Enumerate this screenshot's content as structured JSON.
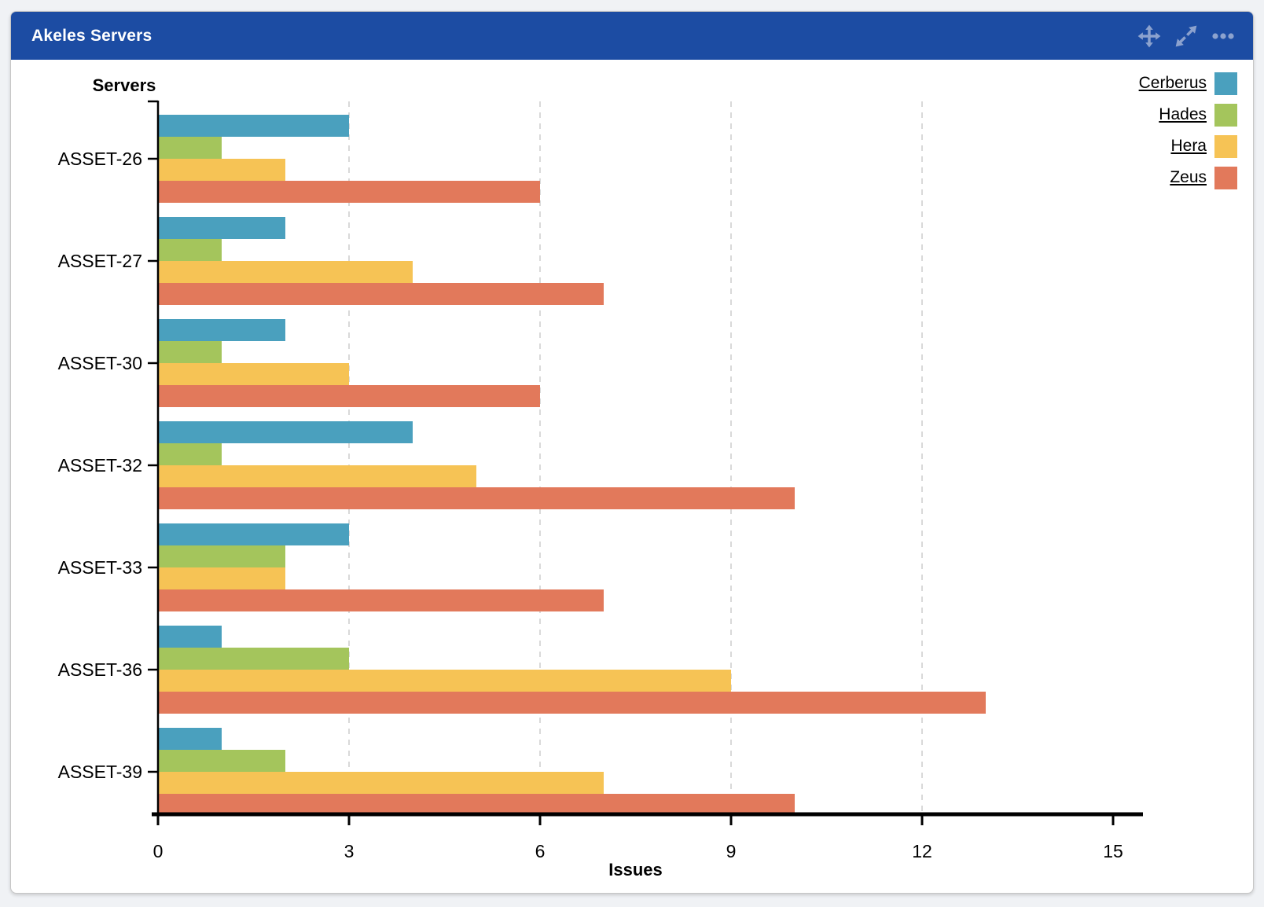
{
  "header": {
    "title": "Akeles Servers",
    "icons": [
      {
        "name": "move-icon"
      },
      {
        "name": "expand-icon"
      },
      {
        "name": "more-icon"
      }
    ],
    "bg_color": "#1C4CA3",
    "icon_color": "#8CA2CE"
  },
  "colors": {
    "page_bg": "#F0F2F5",
    "panel_bg": "#FFFFFF",
    "panel_border": "#C6C6C6"
  },
  "chart_data": {
    "type": "bar",
    "orientation": "horizontal",
    "y_axis_title": "Servers",
    "x_axis_title": "Issues",
    "categories": [
      "ASSET-26",
      "ASSET-27",
      "ASSET-30",
      "ASSET-32",
      "ASSET-33",
      "ASSET-36",
      "ASSET-39"
    ],
    "series": [
      {
        "name": "Cerberus",
        "color": "#4AA0BE",
        "values": [
          3,
          2,
          2,
          4,
          3,
          1,
          1
        ]
      },
      {
        "name": "Hades",
        "color": "#A4C55C",
        "values": [
          1,
          1,
          1,
          1,
          2,
          3,
          2
        ]
      },
      {
        "name": "Hera",
        "color": "#F6C355",
        "values": [
          2,
          4,
          3,
          5,
          2,
          9,
          7
        ]
      },
      {
        "name": "Zeus",
        "color": "#E2795B",
        "values": [
          6,
          7,
          6,
          10,
          7,
          13,
          10
        ]
      }
    ],
    "x_ticks": [
      0,
      3,
      6,
      9,
      12,
      15
    ],
    "xlim": [
      0,
      15
    ],
    "gridlines_at": [
      3,
      6,
      9,
      12
    ],
    "grid_color": "#D9D9D9",
    "axis_color": "#000000",
    "legend_position": "top-right",
    "legend_entries": [
      "Cerberus",
      "Hades",
      "Hera",
      "Zeus"
    ]
  }
}
